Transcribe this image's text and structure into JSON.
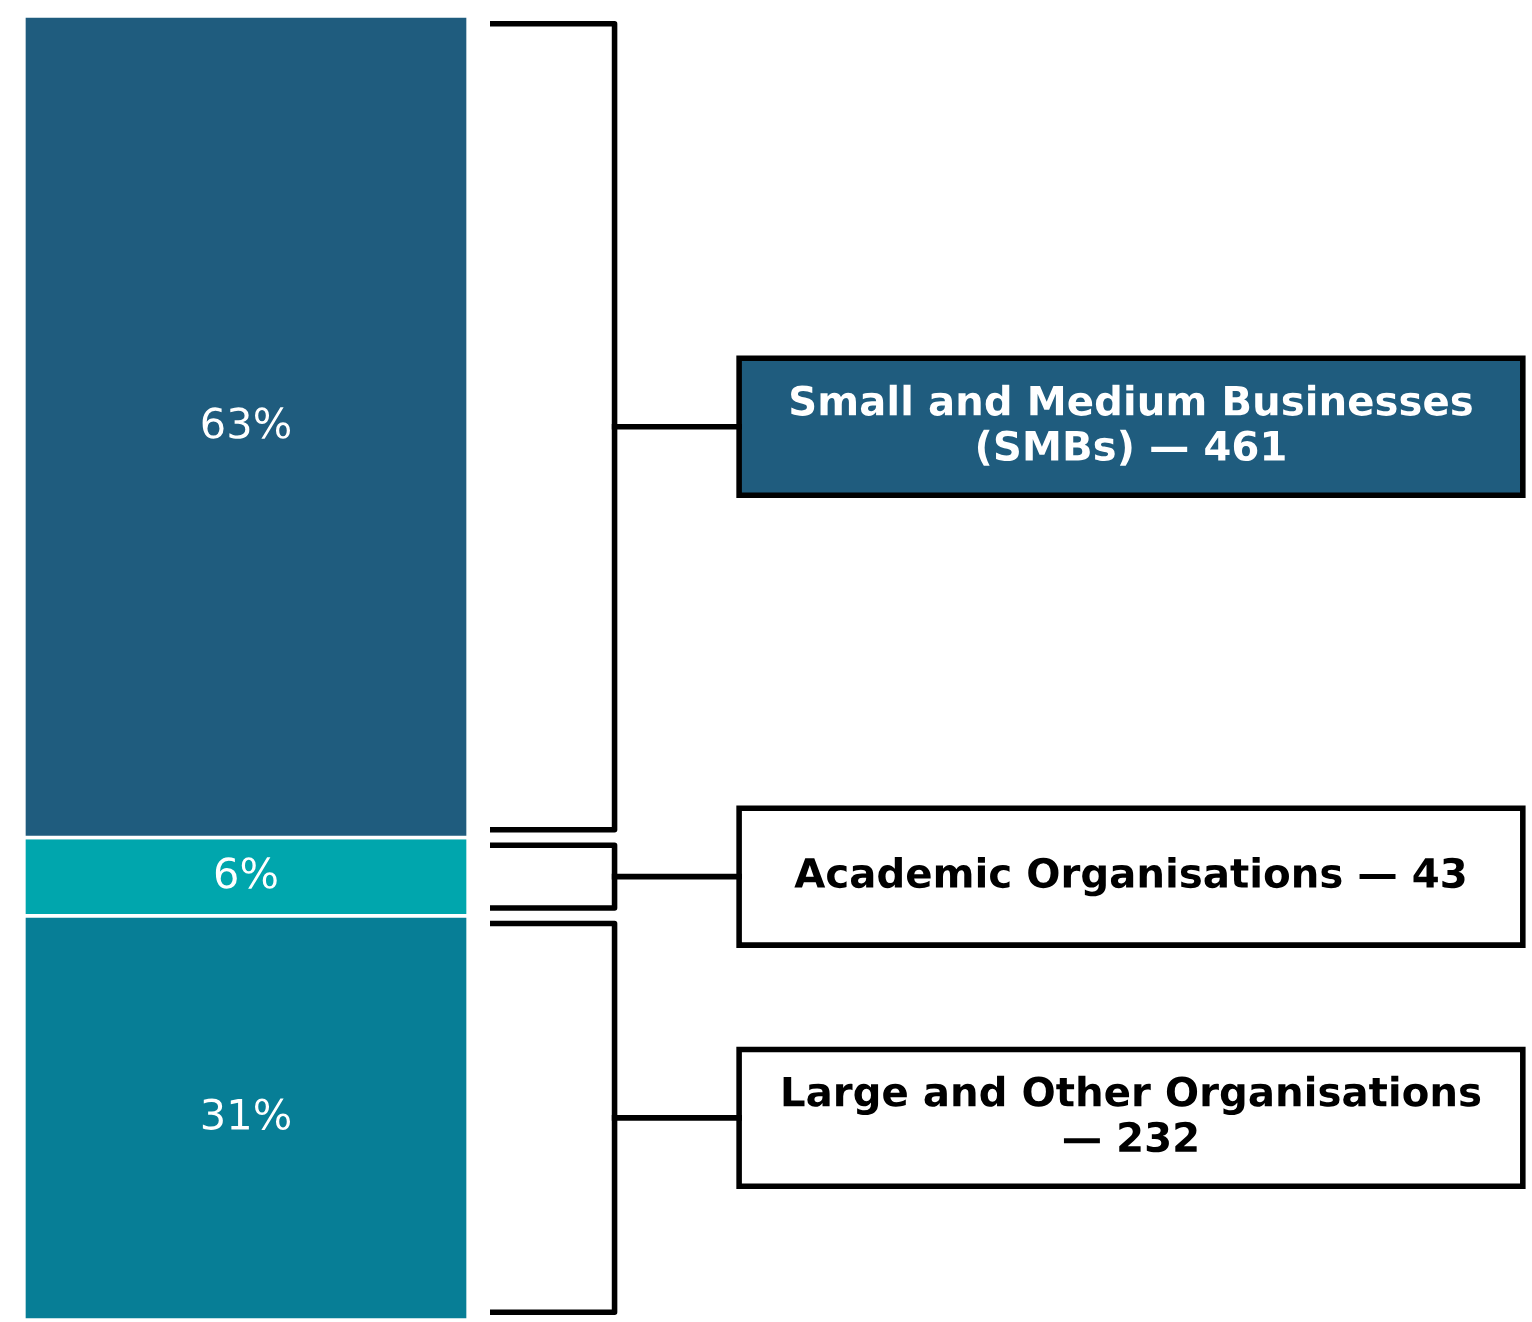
{
  "chart_data": {
    "type": "bar",
    "stacked": true,
    "categories": [
      null
    ],
    "ylim": [
      0,
      100
    ],
    "tick_labels": false,
    "series": [
      {
        "name": "Large and Other Organisations — 232",
        "color": "#077e96",
        "values": [
          31
        ],
        "value_labels": [
          "31%"
        ]
      },
      {
        "name": "Academic Organisations — 43",
        "color": "#00a6ad",
        "values": [
          6
        ],
        "value_labels": [
          "6%"
        ]
      },
      {
        "name": "Small and Medium Businesses (SMBs) — 461",
        "color": "#1f5c7e",
        "values": [
          63
        ],
        "value_labels": [
          "63%"
        ]
      }
    ]
  }
}
